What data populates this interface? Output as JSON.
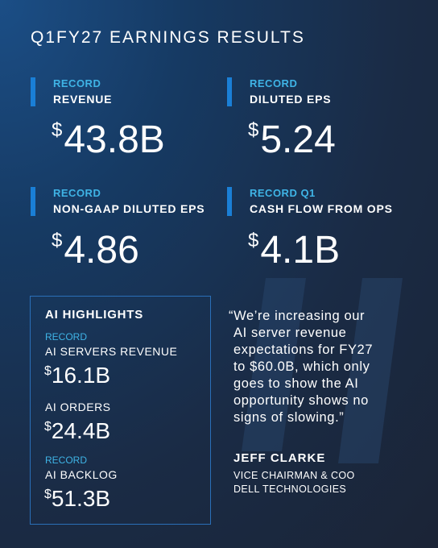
{
  "header": {
    "title": "Q1FY27 EARNINGS RESULTS"
  },
  "metrics": [
    {
      "kicker": "RECORD",
      "label": "REVENUE",
      "currency": "$",
      "amount": "43.8B"
    },
    {
      "kicker": "RECORD",
      "label": "DILUTED EPS",
      "currency": "$",
      "amount": "5.24"
    },
    {
      "kicker": "RECORD",
      "label": "NON-GAAP DILUTED EPS",
      "currency": "$",
      "amount": "4.86"
    },
    {
      "kicker": "RECORD Q1",
      "label": "CASH FLOW FROM OPS",
      "currency": "$",
      "amount": "4.1B"
    }
  ],
  "ai_highlights": {
    "title": "AI HIGHLIGHTS",
    "items": [
      {
        "kicker": "RECORD",
        "label": "AI SERVERS REVENUE",
        "currency": "$",
        "amount": "16.1B"
      },
      {
        "label": "AI ORDERS",
        "currency": "$",
        "amount": "24.4B"
      },
      {
        "kicker": "RECORD",
        "label": "AI BACKLOG",
        "currency": "$",
        "amount": "51.3B"
      }
    ]
  },
  "quote": {
    "lines": [
      "“We’re increasing our",
      "AI server revenue",
      "expectations for FY27",
      "to $60.0B, which only",
      "goes to show the AI",
      "opportunity shows no",
      "signs of slowing.”"
    ],
    "name": "JEFF CLARKE",
    "role": "VICE CHAIRMAN & COO",
    "company": "DELL TECHNOLOGIES"
  }
}
